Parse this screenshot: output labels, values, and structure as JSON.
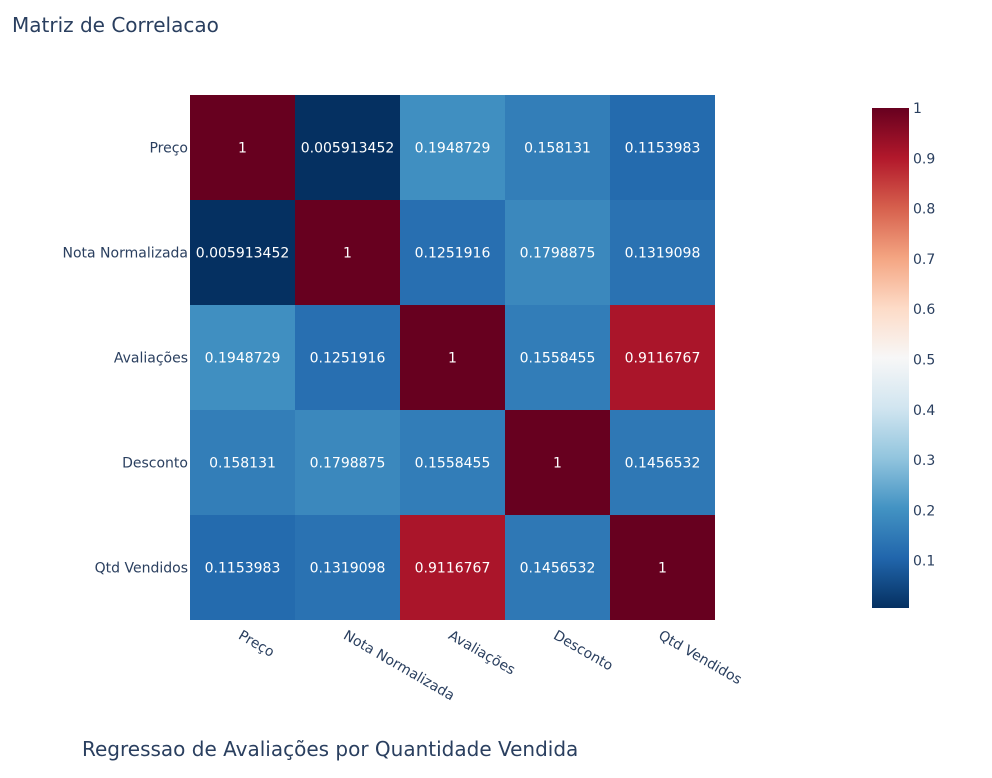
{
  "chart_data": {
    "type": "heatmap",
    "title": "Matriz de Correlacao",
    "x": [
      "Preço",
      "Nota Normalizada",
      "Avaliações",
      "Desconto",
      "Qtd Vendidos"
    ],
    "y": [
      "Preço",
      "Nota Normalizada",
      "Avaliações",
      "Desconto",
      "Qtd Vendidos"
    ],
    "z": [
      [
        1,
        0.005913452,
        0.1948729,
        0.158131,
        0.1153983
      ],
      [
        0.005913452,
        1,
        0.1251916,
        0.1798875,
        0.1319098
      ],
      [
        0.1948729,
        0.1251916,
        1,
        0.1558455,
        0.9116767
      ],
      [
        0.158131,
        0.1798875,
        0.1558455,
        1,
        0.1456532
      ],
      [
        0.1153983,
        0.1319098,
        0.9116767,
        0.1456532,
        1
      ]
    ],
    "colorscale": "RdBu reversed",
    "colorbar": {
      "range": [
        0.005913452,
        1
      ],
      "ticks": [
        0.1,
        0.2,
        0.3,
        0.4,
        0.5,
        0.6,
        0.7,
        0.8,
        0.9,
        1
      ],
      "tick_labels": [
        "0.1",
        "0.2",
        "0.3",
        "0.4",
        "0.5",
        "0.6",
        "0.7",
        "0.8",
        "0.9",
        "1"
      ]
    },
    "x_tick_angle": 30
  },
  "next_chart_title": "Regressao de Avaliações por Quantidade Vendida"
}
